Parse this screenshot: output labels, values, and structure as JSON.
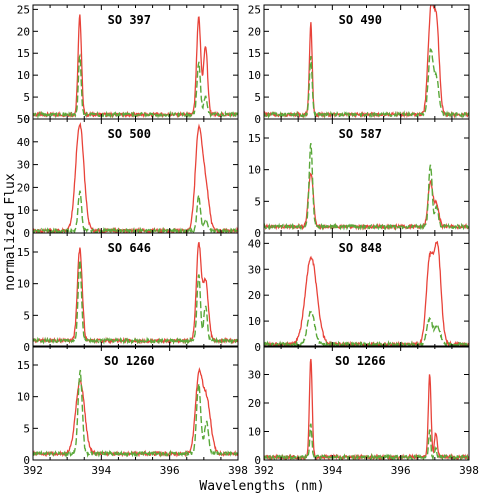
{
  "figure": {
    "xlabel": "Wavelengths (nm)",
    "ylabel": "normalized Flux"
  },
  "colors": {
    "red_series": "#e8433a",
    "green_series": "#5aa83a"
  },
  "chart_data": [
    {
      "type": "line",
      "title": "SO 397",
      "xlim": [
        392,
        398
      ],
      "ylim": [
        0,
        26
      ],
      "xticks": [
        "392",
        "394",
        "396",
        "398"
      ],
      "yticks": [
        "0",
        "5",
        "10",
        "15",
        "20",
        "25"
      ],
      "series": [
        {
          "line_style": "solid",
          "color": "red",
          "peaks": [
            {
              "x": 393.37,
              "height": 23.5,
              "width": 0.05
            },
            {
              "x": 396.85,
              "height": 23.0,
              "width": 0.06
            },
            {
              "x": 397.05,
              "height": 16.5,
              "width": 0.06
            }
          ]
        },
        {
          "line_style": "dashed",
          "color": "green",
          "peaks": [
            {
              "x": 393.37,
              "height": 14.5,
              "width": 0.04
            },
            {
              "x": 396.85,
              "height": 13.0,
              "width": 0.05
            },
            {
              "x": 397.05,
              "height": 5.0,
              "width": 0.05
            }
          ]
        }
      ]
    },
    {
      "type": "line",
      "title": "SO 490",
      "xlim": [
        392,
        398
      ],
      "ylim": [
        0,
        26
      ],
      "xticks": [
        "392",
        "394",
        "396",
        "398"
      ],
      "yticks": [
        "0",
        "5",
        "10",
        "15",
        "20",
        "25"
      ],
      "series": [
        {
          "line_style": "solid",
          "color": "red",
          "peaks": [
            {
              "x": 393.37,
              "height": 22.0,
              "width": 0.04
            },
            {
              "x": 396.88,
              "height": 23.5,
              "width": 0.08
            },
            {
              "x": 397.05,
              "height": 21.5,
              "width": 0.08
            }
          ]
        },
        {
          "line_style": "dashed",
          "color": "green",
          "peaks": [
            {
              "x": 393.37,
              "height": 14.0,
              "width": 0.04
            },
            {
              "x": 396.88,
              "height": 15.5,
              "width": 0.07
            },
            {
              "x": 397.05,
              "height": 9.0,
              "width": 0.07
            }
          ]
        }
      ]
    },
    {
      "type": "line",
      "title": "SO 500",
      "xlim": [
        392,
        398
      ],
      "ylim": [
        0,
        50
      ],
      "xticks": [
        "392",
        "394",
        "396",
        "398"
      ],
      "yticks": [
        "0",
        "10",
        "20",
        "30",
        "40",
        "50"
      ],
      "series": [
        {
          "line_style": "solid",
          "color": "red",
          "peaks": [
            {
              "x": 393.37,
              "height": 48.0,
              "width": 0.12
            },
            {
              "x": 396.85,
              "height": 44.0,
              "width": 0.1
            },
            {
              "x": 397.05,
              "height": 20.0,
              "width": 0.1
            }
          ]
        },
        {
          "line_style": "dashed",
          "color": "green",
          "peaks": [
            {
              "x": 393.37,
              "height": 18.0,
              "width": 0.05
            },
            {
              "x": 396.85,
              "height": 16.0,
              "width": 0.05
            },
            {
              "x": 397.05,
              "height": 6.0,
              "width": 0.05
            }
          ]
        }
      ]
    },
    {
      "type": "line",
      "title": "SO 587",
      "xlim": [
        392,
        398
      ],
      "ylim": [
        0,
        18
      ],
      "xticks": [
        "392",
        "394",
        "396",
        "398"
      ],
      "yticks": [
        "0",
        "5",
        "10",
        "15"
      ],
      "series": [
        {
          "line_style": "solid",
          "color": "red",
          "peaks": [
            {
              "x": 393.37,
              "height": 9.5,
              "width": 0.07
            },
            {
              "x": 396.87,
              "height": 8.0,
              "width": 0.07
            },
            {
              "x": 397.05,
              "height": 4.5,
              "width": 0.07
            }
          ]
        },
        {
          "line_style": "dashed",
          "color": "green",
          "peaks": [
            {
              "x": 393.37,
              "height": 14.0,
              "width": 0.05
            },
            {
              "x": 396.87,
              "height": 11.0,
              "width": 0.05
            },
            {
              "x": 397.05,
              "height": 4.0,
              "width": 0.05
            }
          ]
        }
      ]
    },
    {
      "type": "line",
      "title": "SO 646",
      "xlim": [
        392,
        398
      ],
      "ylim": [
        0,
        18
      ],
      "xticks": [
        "392",
        "394",
        "396",
        "398"
      ],
      "yticks": [
        "0",
        "5",
        "10",
        "15"
      ],
      "series": [
        {
          "line_style": "solid",
          "color": "red",
          "peaks": [
            {
              "x": 393.37,
              "height": 15.5,
              "width": 0.07
            },
            {
              "x": 396.85,
              "height": 16.0,
              "width": 0.07
            },
            {
              "x": 397.05,
              "height": 10.5,
              "width": 0.08
            }
          ]
        },
        {
          "line_style": "dashed",
          "color": "green",
          "peaks": [
            {
              "x": 393.37,
              "height": 13.5,
              "width": 0.05
            },
            {
              "x": 396.85,
              "height": 11.5,
              "width": 0.05
            },
            {
              "x": 397.05,
              "height": 6.5,
              "width": 0.05
            }
          ]
        }
      ]
    },
    {
      "type": "line",
      "title": "SO 848",
      "xlim": [
        392,
        398
      ],
      "ylim": [
        0,
        44
      ],
      "xticks": [
        "392",
        "394",
        "396",
        "398"
      ],
      "yticks": [
        "0",
        "10",
        "20",
        "30",
        "40"
      ],
      "series": [
        {
          "line_style": "solid",
          "color": "red",
          "peaks": [
            {
              "x": 393.38,
              "height": 34.5,
              "width": 0.17
            },
            {
              "x": 396.85,
              "height": 33.0,
              "width": 0.1
            },
            {
              "x": 397.08,
              "height": 38.0,
              "width": 0.1
            }
          ]
        },
        {
          "line_style": "dashed",
          "color": "green",
          "peaks": [
            {
              "x": 393.38,
              "height": 14.0,
              "width": 0.1
            },
            {
              "x": 396.85,
              "height": 11.0,
              "width": 0.08
            },
            {
              "x": 397.08,
              "height": 8.0,
              "width": 0.08
            }
          ]
        }
      ]
    },
    {
      "type": "line",
      "title": "SO 1260",
      "xlim": [
        392,
        398
      ],
      "ylim": [
        0,
        18
      ],
      "xticks": [
        "392",
        "394",
        "396",
        "398"
      ],
      "yticks": [
        "0",
        "5",
        "10",
        "15"
      ],
      "series": [
        {
          "line_style": "solid",
          "color": "red",
          "peaks": [
            {
              "x": 393.38,
              "height": 12.5,
              "width": 0.13
            },
            {
              "x": 396.85,
              "height": 12.5,
              "width": 0.1
            },
            {
              "x": 397.08,
              "height": 9.5,
              "width": 0.12
            }
          ]
        },
        {
          "line_style": "dashed",
          "color": "green",
          "peaks": [
            {
              "x": 393.38,
              "height": 14.0,
              "width": 0.06
            },
            {
              "x": 396.85,
              "height": 12.0,
              "width": 0.06
            },
            {
              "x": 397.08,
              "height": 6.0,
              "width": 0.06
            }
          ]
        }
      ]
    },
    {
      "type": "line",
      "title": "SO 1266",
      "xlim": [
        392,
        398
      ],
      "ylim": [
        0,
        40
      ],
      "xticks": [
        "392",
        "394",
        "396",
        "398"
      ],
      "yticks": [
        "0",
        "10",
        "20",
        "30"
      ],
      "series": [
        {
          "line_style": "solid",
          "color": "red",
          "peaks": [
            {
              "x": 393.37,
              "height": 36.0,
              "width": 0.04
            },
            {
              "x": 396.85,
              "height": 30.0,
              "width": 0.04
            },
            {
              "x": 397.03,
              "height": 9.5,
              "width": 0.04
            }
          ]
        },
        {
          "line_style": "dashed",
          "color": "green",
          "peaks": [
            {
              "x": 393.37,
              "height": 13.0,
              "width": 0.03
            },
            {
              "x": 396.85,
              "height": 11.0,
              "width": 0.03
            },
            {
              "x": 397.03,
              "height": 4.0,
              "width": 0.03
            }
          ]
        }
      ]
    }
  ]
}
